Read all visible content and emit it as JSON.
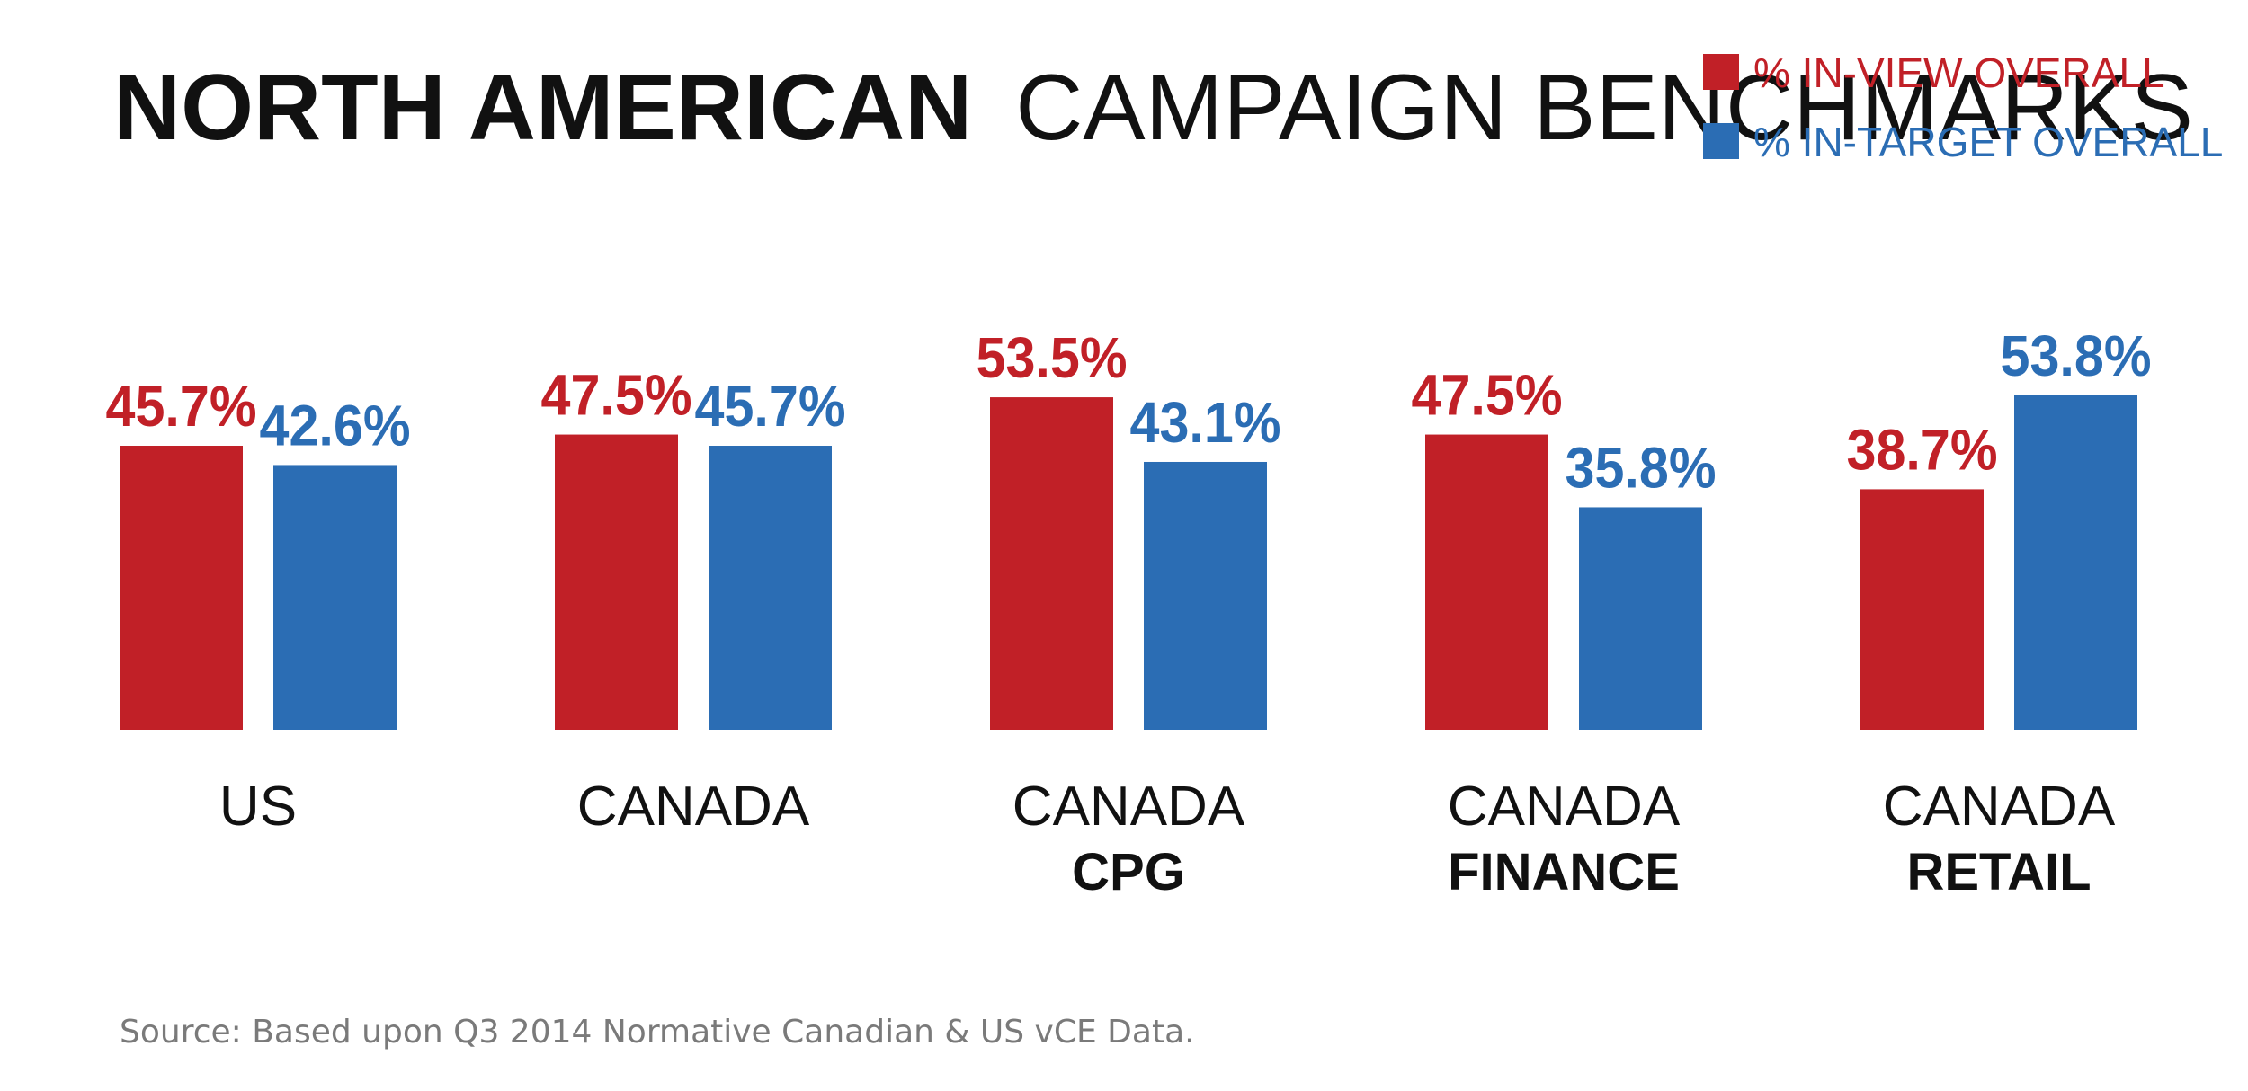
{
  "title": {
    "bold": "NORTH AMERICAN",
    "light": "CAMPAIGN BENCHMARKS"
  },
  "legend": {
    "placement": "top-right",
    "items": [
      {
        "label": "% IN-VIEW OVERALL",
        "color": "#c12027"
      },
      {
        "label": "% IN-TARGET OVERALL",
        "color": "#2b6db4"
      }
    ]
  },
  "source": "Source: Based upon Q3 2014 Normative Canadian & US vCE Data.",
  "chart_data": {
    "type": "bar",
    "title": "NORTH AMERICAN CAMPAIGN BENCHMARKS",
    "categories": [
      {
        "line1": "US",
        "line2": ""
      },
      {
        "line1": "CANADA",
        "line2": ""
      },
      {
        "line1": "CANADA",
        "line2": "CPG"
      },
      {
        "line1": "CANADA",
        "line2": "FINANCE"
      },
      {
        "line1": "CANADA",
        "line2": "RETAIL"
      }
    ],
    "series": [
      {
        "name": "% IN-VIEW OVERALL",
        "color": "#c12027",
        "values": [
          45.7,
          47.5,
          53.5,
          47.5,
          38.7
        ],
        "labels": [
          "45.7%",
          "47.5%",
          "53.5%",
          "47.5%",
          "38.7%"
        ]
      },
      {
        "name": "% IN-TARGET OVERALL",
        "color": "#2b6db4",
        "values": [
          42.6,
          45.7,
          43.1,
          35.8,
          53.8
        ],
        "labels": [
          "42.6%",
          "45.7%",
          "43.1%",
          "35.8%",
          "53.8%"
        ]
      }
    ],
    "ylim": [
      0,
      53.8
    ],
    "grid": false
  }
}
